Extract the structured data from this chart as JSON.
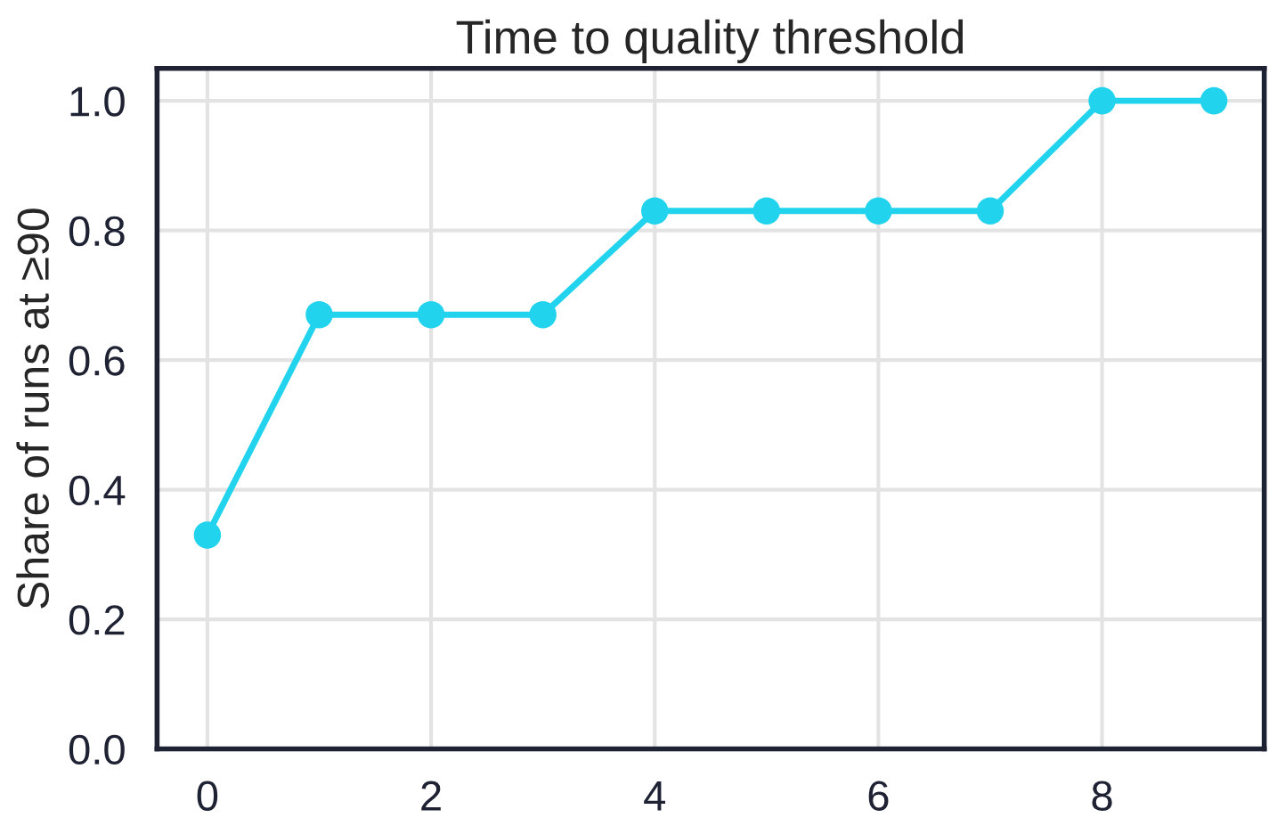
{
  "chart_data": {
    "type": "line",
    "title": "Time to quality threshold",
    "ylabel": "Share of runs at ≥90",
    "x": [
      0,
      1,
      2,
      3,
      4,
      5,
      6,
      7,
      8,
      9
    ],
    "series": [
      {
        "color": "#22d3ee",
        "values": [
          0.33,
          0.67,
          0.67,
          0.67,
          0.83,
          0.83,
          0.83,
          0.83,
          1.0,
          1.0
        ]
      }
    ],
    "xlim": [
      -0.45,
      9.45
    ],
    "xticks": [
      0,
      2,
      4,
      6,
      8
    ],
    "ylim": [
      0,
      1.05
    ],
    "yticks": [
      {
        "value": 0,
        "label": "0.0"
      },
      0.2,
      0.4,
      0.6,
      0.8,
      {
        "value": 1,
        "label": "1.0"
      }
    ],
    "grid": true,
    "marker": "circle",
    "line_style": "solid"
  }
}
